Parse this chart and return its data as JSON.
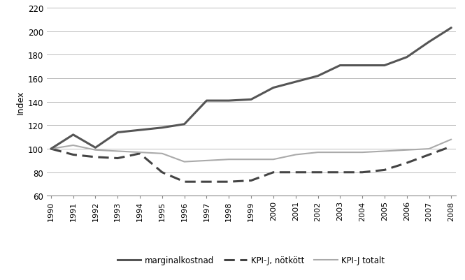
{
  "years": [
    1990,
    1991,
    1992,
    1993,
    1994,
    1995,
    1996,
    1997,
    1998,
    1999,
    2000,
    2001,
    2002,
    2003,
    2004,
    2005,
    2006,
    2007,
    2008
  ],
  "marginalkostnad": [
    100,
    112,
    101,
    114,
    116,
    118,
    121,
    141,
    141,
    142,
    152,
    157,
    162,
    171,
    171,
    171,
    178,
    191,
    203
  ],
  "kpi_notkott": [
    100,
    95,
    93,
    92,
    96,
    80,
    72,
    72,
    72,
    73,
    80,
    80,
    80,
    80,
    80,
    82,
    88,
    95,
    102
  ],
  "kpi_totalt": [
    100,
    103,
    99,
    98,
    97,
    96,
    89,
    90,
    91,
    91,
    91,
    95,
    97,
    97,
    97,
    98,
    99,
    100,
    108
  ],
  "marginalkostnad_color": "#555555",
  "kpi_notkott_color": "#444444",
  "kpi_totalt_color": "#aaaaaa",
  "ylim": [
    60,
    220
  ],
  "yticks": [
    60,
    80,
    100,
    120,
    140,
    160,
    180,
    200,
    220
  ],
  "ylabel": "Index",
  "background_color": "#ffffff",
  "grid_color": "#bbbbbb",
  "legend_labels": [
    "marginalkostnad",
    "KPI-J, nötkött",
    "KPI-J totalt"
  ]
}
